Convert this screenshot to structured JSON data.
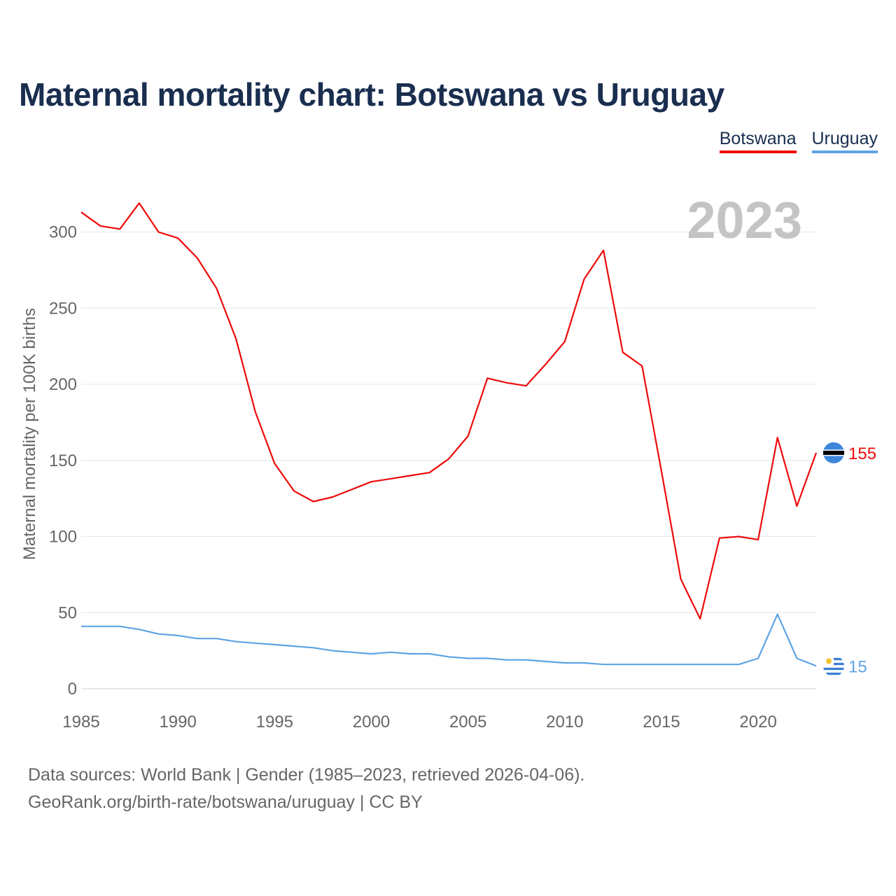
{
  "chart_data": {
    "type": "line",
    "title": "Maternal mortality chart: Botswana vs Uruguay",
    "xlabel": "",
    "ylabel": "Maternal mortality per 100K births",
    "xlim": [
      1985,
      2023
    ],
    "ylim": [
      0,
      320
    ],
    "xticks": [
      1985,
      1990,
      1995,
      2000,
      2005,
      2010,
      2015,
      2020
    ],
    "yticks": [
      0,
      50,
      100,
      150,
      200,
      250,
      300
    ],
    "year_label": "2023",
    "x": [
      1985,
      1986,
      1987,
      1988,
      1989,
      1990,
      1991,
      1992,
      1993,
      1994,
      1995,
      1996,
      1997,
      1998,
      1999,
      2000,
      2001,
      2002,
      2003,
      2004,
      2005,
      2006,
      2007,
      2008,
      2009,
      2010,
      2011,
      2012,
      2013,
      2014,
      2015,
      2016,
      2017,
      2018,
      2019,
      2020,
      2021,
      2022,
      2023
    ],
    "series": [
      {
        "name": "Botswana",
        "color": "#ee0a0a",
        "end_label": "155",
        "values": [
          313,
          304,
          302,
          319,
          300,
          296,
          283,
          263,
          230,
          182,
          148,
          130,
          123,
          126,
          131,
          136,
          138,
          140,
          142,
          151,
          166,
          204,
          201,
          199,
          213,
          228,
          269,
          288,
          221,
          212,
          143,
          72,
          46,
          99,
          100,
          98,
          165,
          120,
          155
        ]
      },
      {
        "name": "Uruguay",
        "color": "#5ea4e4",
        "end_label": "15",
        "values": [
          41,
          41,
          41,
          39,
          36,
          35,
          33,
          33,
          31,
          30,
          29,
          28,
          27,
          25,
          24,
          23,
          24,
          23,
          23,
          21,
          20,
          20,
          19,
          19,
          18,
          17,
          17,
          16,
          16,
          16,
          16,
          16,
          16,
          16,
          16,
          20,
          49,
          20,
          15
        ]
      }
    ],
    "legend_position": "top-right"
  },
  "footer": {
    "line1": "Data sources: World Bank | Gender (1985–2023, retrieved 2026-04-06).",
    "line2": "GeoRank.org/birth-rate/botswana/uruguay | CC BY"
  },
  "colors": {
    "title": "#1a2e4f",
    "axis_text": "#666666",
    "grid": "#e6e6e6",
    "year": "#c4c4c4"
  }
}
